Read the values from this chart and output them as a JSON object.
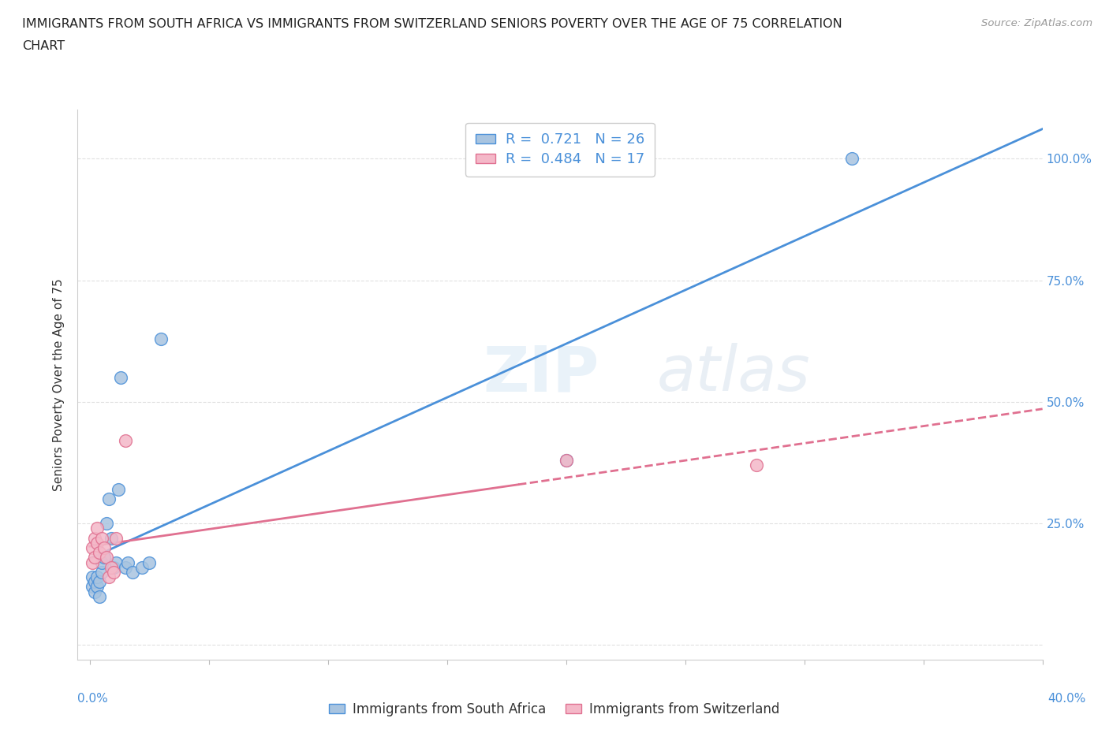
{
  "title_line1": "IMMIGRANTS FROM SOUTH AFRICA VS IMMIGRANTS FROM SWITZERLAND SENIORS POVERTY OVER THE AGE OF 75 CORRELATION",
  "title_line2": "CHART",
  "source": "Source: ZipAtlas.com",
  "ylabel": "Seniors Poverty Over the Age of 75",
  "blue_R": 0.721,
  "blue_N": 26,
  "pink_R": 0.484,
  "pink_N": 17,
  "blue_color": "#a8c4e0",
  "blue_line_color": "#4a90d9",
  "pink_color": "#f4b8c8",
  "pink_line_color": "#e07090",
  "legend_label_blue": "Immigrants from South Africa",
  "legend_label_pink": "Immigrants from Switzerland",
  "bg_color": "#ffffff",
  "grid_color": "#cccccc",
  "blue_scatter_x": [
    0.001,
    0.001,
    0.002,
    0.002,
    0.003,
    0.003,
    0.004,
    0.004,
    0.005,
    0.005,
    0.006,
    0.007,
    0.008,
    0.009,
    0.01,
    0.011,
    0.012,
    0.013,
    0.015,
    0.016,
    0.018,
    0.022,
    0.025,
    0.03,
    0.2,
    0.32
  ],
  "blue_scatter_y": [
    0.12,
    0.14,
    0.11,
    0.13,
    0.12,
    0.14,
    0.1,
    0.13,
    0.15,
    0.17,
    0.18,
    0.25,
    0.3,
    0.22,
    0.16,
    0.17,
    0.32,
    0.55,
    0.16,
    0.17,
    0.15,
    0.16,
    0.17,
    0.63,
    0.38,
    1.0
  ],
  "pink_scatter_x": [
    0.001,
    0.001,
    0.002,
    0.002,
    0.003,
    0.003,
    0.004,
    0.005,
    0.006,
    0.007,
    0.008,
    0.009,
    0.01,
    0.011,
    0.015,
    0.2,
    0.28
  ],
  "pink_scatter_y": [
    0.2,
    0.17,
    0.22,
    0.18,
    0.21,
    0.24,
    0.19,
    0.22,
    0.2,
    0.18,
    0.14,
    0.16,
    0.15,
    0.22,
    0.42,
    0.38,
    0.37
  ],
  "xlim": [
    -0.005,
    0.4
  ],
  "ylim": [
    -0.03,
    1.1
  ],
  "xticks": [
    0.0,
    0.05,
    0.1,
    0.15,
    0.2,
    0.25,
    0.3,
    0.35,
    0.4
  ],
  "yticks": [
    0.0,
    0.25,
    0.5,
    0.75,
    1.0
  ],
  "ytick_labels_right": [
    "",
    "25.0%",
    "50.0%",
    "75.0%",
    "100.0%"
  ]
}
